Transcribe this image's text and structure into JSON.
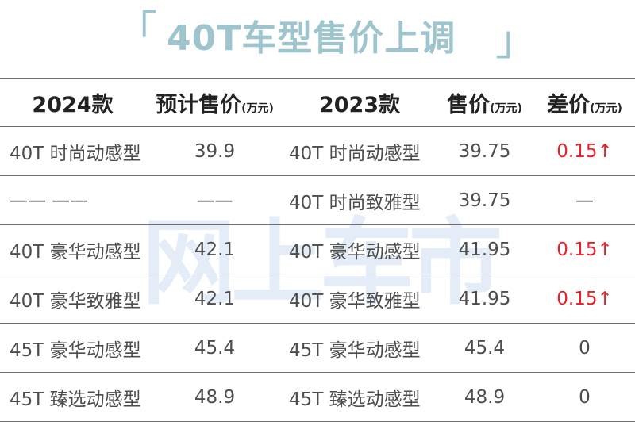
{
  "title": {
    "left_bracket": "「",
    "text": "40T车型售价上调",
    "right_bracket": "」"
  },
  "watermark": "网上车市",
  "table": {
    "headers": {
      "col1": "2024款",
      "col2": "预计售价",
      "col2_unit": "(万元)",
      "col3": "2023款",
      "col4": "售价",
      "col4_unit": "(万元)",
      "col5": "差价",
      "col5_unit": "(万元)"
    },
    "rows": [
      {
        "model_2024": "40T 时尚动感型",
        "price_2024": "39.9",
        "model_2023": "40T 时尚动感型",
        "price_2023": "39.75",
        "diff": "0.15↑"
      },
      {
        "model_2024": "—— ——",
        "price_2024": "——",
        "model_2023": "40T 时尚致雅型",
        "price_2023": "39.75",
        "diff": "—"
      },
      {
        "model_2024": "40T 豪华动感型",
        "price_2024": "42.1",
        "model_2023": "40T 豪华动感型",
        "price_2023": "41.95",
        "diff": "0.15↑"
      },
      {
        "model_2024": "40T 豪华致雅型",
        "price_2024": "42.1",
        "model_2023": "40T 豪华致雅型",
        "price_2023": "41.95",
        "diff": "0.15↑"
      },
      {
        "model_2024": "45T 豪华动感型",
        "price_2024": "45.4",
        "model_2023": "45T 豪华动感型",
        "price_2023": "45.4",
        "diff": "0"
      },
      {
        "model_2024": "45T 臻选动感型",
        "price_2024": "48.9",
        "model_2023": "45T 臻选动感型",
        "price_2023": "48.9",
        "diff": "0"
      }
    ]
  },
  "colors": {
    "title": "#9ec5cd",
    "increase": "#e8202a",
    "watermark": "#dbe8f5"
  }
}
